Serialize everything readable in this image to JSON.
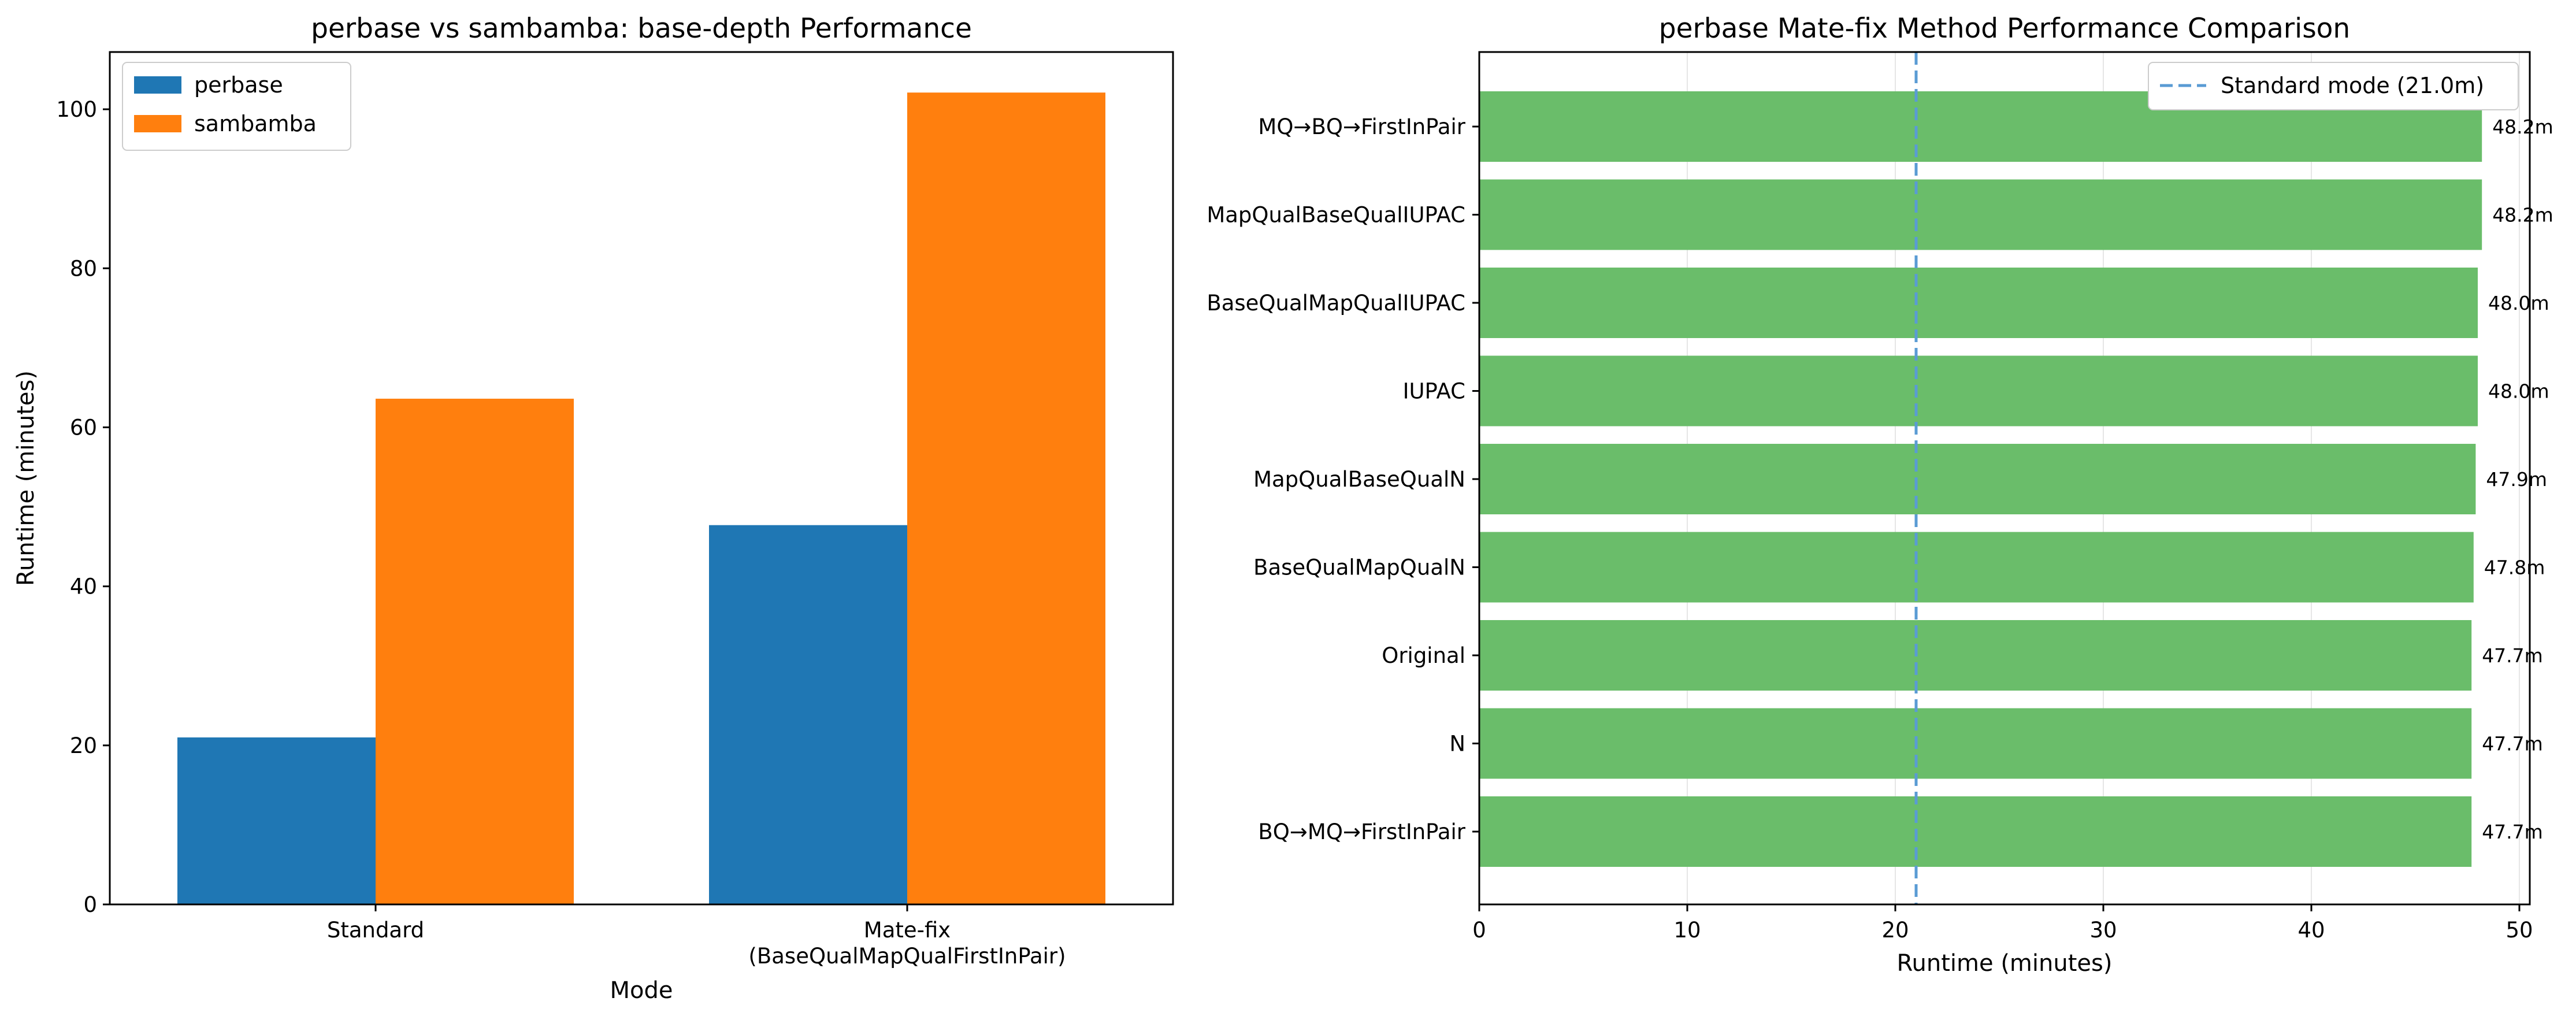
{
  "chart_data": [
    {
      "type": "bar",
      "title": "perbase vs sambamba: base-depth Performance",
      "xlabel": "Mode",
      "ylabel": "Runtime (minutes)",
      "categories": [
        [
          "Standard"
        ],
        [
          "Mate-fix",
          "(BaseQualMapQualFirstInPair)"
        ]
      ],
      "series": [
        {
          "name": "perbase",
          "values": [
            21.0,
            47.7
          ],
          "color": "#1f77b4"
        },
        {
          "name": "sambamba",
          "values": [
            63.6,
            102.1
          ],
          "color": "#ff7f0e"
        }
      ],
      "ylim": [
        0,
        107.2
      ],
      "yticks": [
        0,
        20,
        40,
        60,
        80,
        100
      ],
      "legend": "upper-left",
      "grid": false
    },
    {
      "type": "bar",
      "orientation": "horizontal",
      "title": "perbase Mate-fix Method Performance Comparison",
      "xlabel": "Runtime (minutes)",
      "ylabel": "",
      "categories": [
        "MQ→BQ→FirstInPair",
        "MapQualBaseQualIUPAC",
        "BaseQualMapQualIUPAC",
        "IUPAC",
        "MapQualBaseQualN",
        "BaseQualMapQualN",
        "Original",
        "N",
        "BQ→MQ→FirstInPair"
      ],
      "values": [
        48.2,
        48.2,
        48.0,
        48.0,
        47.9,
        47.8,
        47.7,
        47.7,
        47.7
      ],
      "value_labels": [
        "48.2m",
        "48.2m",
        "48.0m",
        "48.0m",
        "47.9m",
        "47.8m",
        "47.7m",
        "47.7m",
        "47.7m"
      ],
      "bar_color": "#6abd6a",
      "reference_line": {
        "label": "Standard mode (21.0m)",
        "value": 21.0,
        "color": "#5a9bd4",
        "style": "dashed"
      },
      "xlim": [
        0,
        50.5
      ],
      "xticks": [
        0,
        10,
        20,
        30,
        40,
        50
      ],
      "legend": "upper-right",
      "grid": true
    }
  ]
}
